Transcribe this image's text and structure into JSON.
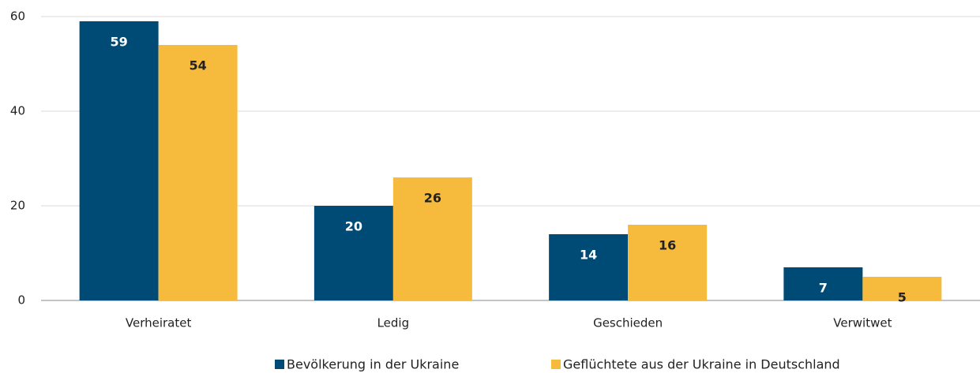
{
  "chart_data": {
    "type": "bar",
    "categories": [
      "Verheiratet",
      "Ledig",
      "Geschieden",
      "Verwitwet"
    ],
    "series": [
      {
        "name": "Bevölkerung in der Ukraine",
        "color": "#004b76",
        "values": [
          59,
          20,
          14,
          7
        ]
      },
      {
        "name": "Geflüchtete aus der Ukraine in Deutschland",
        "color": "#f6bb3d",
        "values": [
          54,
          26,
          16,
          5
        ]
      }
    ],
    "ylim": [
      0,
      60
    ],
    "yticks": [
      0,
      20,
      40,
      60
    ],
    "grid": true,
    "legend": "bottom"
  }
}
